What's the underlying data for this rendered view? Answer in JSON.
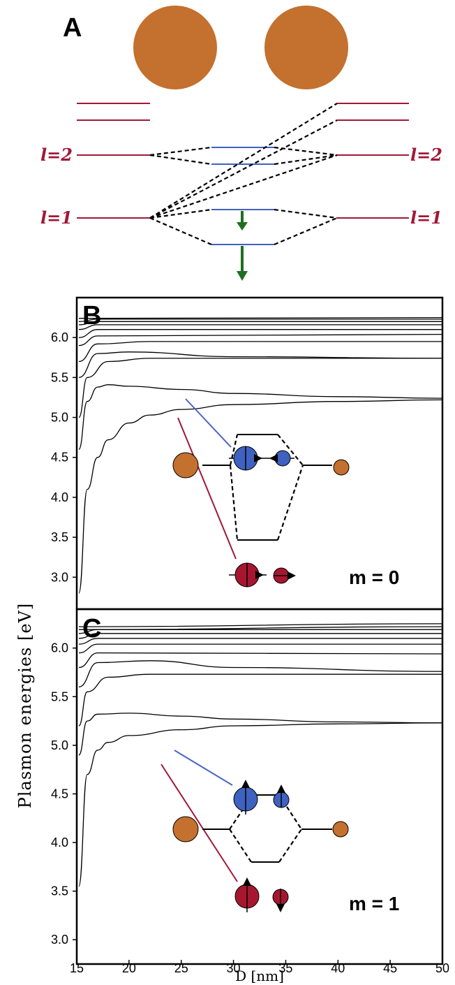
{
  "panels": {
    "a": {
      "letter": "A",
      "label_left_l2": "l=2",
      "label_right_l2": "l=2",
      "label_left_l1": "l=1",
      "label_right_l1": "l=1"
    },
    "b": {
      "letter": "B",
      "m_label": "m = 0"
    },
    "c": {
      "letter": "C",
      "m_label": "m = 1"
    }
  },
  "colors": {
    "sphere": "#c4702e",
    "level": "#a01838",
    "bonding": "#3f62c0",
    "antibonding_marker": "#3f62c0",
    "bonding_marker": "#a6172f",
    "arrow": "#1f6e22",
    "blue_leader": "#4a63c7",
    "red_leader": "#a01838"
  },
  "chart_data": [
    {
      "type": "line",
      "panel": "B",
      "title": "",
      "xlabel": "D [nm]",
      "ylabel": "Plasmon energies [eV]",
      "xlim": [
        15,
        50
      ],
      "ylim": [
        2.6,
        6.5
      ],
      "yticks": [
        "3.0",
        "3.5",
        "4.0",
        "4.5",
        "5.0",
        "5.5",
        "6.0"
      ],
      "xticks": [
        "15",
        "20",
        "25",
        "30",
        "35",
        "40",
        "45",
        "50"
      ],
      "annotation": "m = 0",
      "series": [
        {
          "values": [
            [
              15.2,
              2.8
            ],
            [
              16,
              4.1
            ],
            [
              17,
              4.5
            ],
            [
              18,
              4.72
            ],
            [
              20,
              4.93
            ],
            [
              22,
              5.03
            ],
            [
              25,
              5.1
            ],
            [
              30,
              5.16
            ],
            [
              40,
              5.2
            ],
            [
              50,
              5.22
            ]
          ]
        },
        {
          "values": [
            [
              15.2,
              4.6
            ],
            [
              16,
              5.2
            ],
            [
              17,
              5.38
            ],
            [
              18,
              5.41
            ],
            [
              20,
              5.39
            ],
            [
              25,
              5.35
            ],
            [
              30,
              5.3
            ],
            [
              40,
              5.26
            ],
            [
              50,
              5.24
            ]
          ]
        },
        {
          "values": [
            [
              15.2,
              5.0
            ],
            [
              16,
              5.5
            ],
            [
              18,
              5.7
            ],
            [
              22,
              5.74
            ],
            [
              30,
              5.74
            ],
            [
              50,
              5.74
            ]
          ]
        },
        {
          "values": [
            [
              15.2,
              5.5
            ],
            [
              17,
              5.8
            ],
            [
              20,
              5.82
            ],
            [
              30,
              5.76
            ],
            [
              50,
              5.74
            ]
          ]
        },
        {
          "values": [
            [
              15.2,
              5.7
            ],
            [
              17,
              5.92
            ],
            [
              22,
              5.95
            ],
            [
              50,
              5.95
            ]
          ]
        },
        {
          "values": [
            [
              15.2,
              5.9
            ],
            [
              17,
              6.02
            ],
            [
              50,
              6.04
            ]
          ]
        },
        {
          "values": [
            [
              15.2,
              6.0
            ],
            [
              17,
              6.1
            ],
            [
              50,
              6.1
            ]
          ]
        },
        {
          "values": [
            [
              15.2,
              6.1
            ],
            [
              17,
              6.16
            ],
            [
              50,
              6.16
            ]
          ]
        },
        {
          "values": [
            [
              15.2,
              6.16
            ],
            [
              17,
              6.2
            ],
            [
              50,
              6.2
            ]
          ]
        },
        {
          "values": [
            [
              15.2,
              6.2
            ],
            [
              17,
              6.23
            ],
            [
              50,
              6.23
            ]
          ]
        },
        {
          "values": [
            [
              15.2,
              6.24
            ],
            [
              50,
              6.25
            ]
          ]
        }
      ]
    },
    {
      "type": "line",
      "panel": "C",
      "title": "",
      "xlabel": "D [nm]",
      "ylabel": "Plasmon energies [eV]",
      "xlim": [
        15,
        50
      ],
      "ylim": [
        2.75,
        6.4
      ],
      "yticks": [
        "3.0",
        "3.5",
        "4.0",
        "4.5",
        "5.0",
        "5.5",
        "6.0"
      ],
      "xticks": [
        "15",
        "20",
        "25",
        "30",
        "35",
        "40",
        "45",
        "50"
      ],
      "annotation": "m = 1",
      "series": [
        {
          "values": [
            [
              15.2,
              3.55
            ],
            [
              16,
              4.7
            ],
            [
              17,
              4.95
            ],
            [
              18,
              5.03
            ],
            [
              20,
              5.1
            ],
            [
              25,
              5.16
            ],
            [
              30,
              5.2
            ],
            [
              40,
              5.22
            ],
            [
              50,
              5.23
            ]
          ]
        },
        {
          "values": [
            [
              15.2,
              4.9
            ],
            [
              16,
              5.25
            ],
            [
              17,
              5.32
            ],
            [
              20,
              5.33
            ],
            [
              25,
              5.3
            ],
            [
              30,
              5.27
            ],
            [
              40,
              5.24
            ],
            [
              50,
              5.23
            ]
          ]
        },
        {
          "values": [
            [
              15.2,
              5.2
            ],
            [
              16,
              5.55
            ],
            [
              18,
              5.7
            ],
            [
              22,
              5.73
            ],
            [
              50,
              5.73
            ]
          ]
        },
        {
          "values": [
            [
              15.2,
              5.6
            ],
            [
              17,
              5.85
            ],
            [
              22,
              5.87
            ],
            [
              30,
              5.8
            ],
            [
              50,
              5.76
            ]
          ]
        },
        {
          "values": [
            [
              15.2,
              5.8
            ],
            [
              17,
              5.95
            ],
            [
              50,
              5.94
            ]
          ]
        },
        {
          "values": [
            [
              15.2,
              5.95
            ],
            [
              17,
              6.04
            ],
            [
              50,
              6.04
            ]
          ]
        },
        {
          "values": [
            [
              15.2,
              6.04
            ],
            [
              17,
              6.1
            ],
            [
              50,
              6.1
            ]
          ]
        },
        {
          "values": [
            [
              15.2,
              6.1
            ],
            [
              17,
              6.15
            ],
            [
              50,
              6.15
            ]
          ]
        },
        {
          "values": [
            [
              15.2,
              6.15
            ],
            [
              17,
              6.19
            ],
            [
              50,
              6.19
            ]
          ]
        },
        {
          "values": [
            [
              15.2,
              6.19
            ],
            [
              50,
              6.22
            ]
          ]
        },
        {
          "values": [
            [
              15.2,
              6.22
            ],
            [
              50,
              6.25
            ]
          ]
        }
      ]
    }
  ]
}
